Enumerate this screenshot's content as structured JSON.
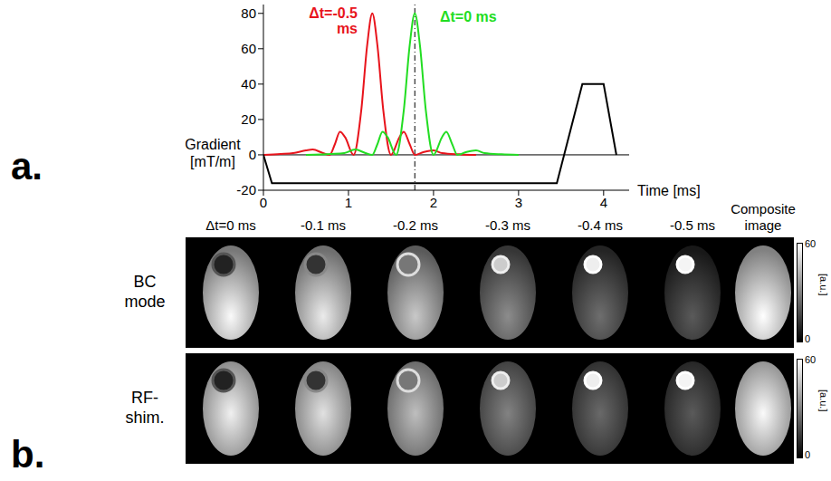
{
  "chart_data": {
    "type": "line",
    "x_label": "Time [ms]",
    "y_label": "Gradient [mT/m]",
    "xlim": [
      0,
      4.3
    ],
    "xticks": [
      0,
      1,
      2,
      3,
      4
    ],
    "ylim": [
      -20,
      85
    ],
    "yticks": [
      -20,
      0,
      20,
      40,
      60,
      80
    ],
    "vertical_line": 1.78,
    "series": [
      {
        "name": "Δt=-0.5 ms",
        "color": "#e8141c",
        "x": [
          0,
          0.2,
          0.35,
          0.5,
          0.58,
          0.7,
          0.78,
          0.84,
          0.9,
          0.96,
          1.06,
          1.15,
          1.22,
          1.28,
          1.34,
          1.41,
          1.5,
          1.6,
          1.65,
          1.72,
          1.78,
          1.88,
          2.0,
          2.1,
          2.3,
          2.5
        ],
        "values": [
          0,
          0.5,
          1,
          2.5,
          3,
          1,
          0,
          6,
          13,
          10,
          0,
          25,
          62,
          80,
          62,
          25,
          0,
          10,
          13,
          6,
          0,
          1.5,
          2.5,
          1,
          0.3,
          0
        ]
      },
      {
        "name": "Δt=0 ms",
        "color": "#22dd22",
        "x": [
          0.5,
          0.8,
          0.95,
          1.08,
          1.2,
          1.28,
          1.34,
          1.4,
          1.46,
          1.56,
          1.65,
          1.72,
          1.78,
          1.84,
          1.91,
          2.0,
          2.1,
          2.15,
          2.22,
          2.28,
          2.38,
          2.5,
          2.6,
          2.8,
          3.0
        ],
        "values": [
          0,
          0.5,
          1,
          3,
          1,
          0,
          6,
          13,
          10,
          0,
          25,
          62,
          80,
          62,
          25,
          0,
          10,
          13,
          6,
          0,
          1.5,
          2.5,
          1,
          0.3,
          0
        ]
      },
      {
        "color": "#000000",
        "x": [
          0,
          0.1,
          3.45,
          3.75,
          4.0,
          4.15
        ],
        "values": [
          0,
          -16,
          -16,
          40,
          40,
          0
        ]
      }
    ]
  },
  "panel_labels": [
    "a.",
    "b."
  ],
  "image_grid": {
    "columns": [
      "Δt=0 ms",
      "-0.1 ms",
      "-0.2 ms",
      "-0.3 ms",
      "-0.4 ms",
      "-0.5 ms",
      "Composite image"
    ],
    "rows": [
      "BC mode",
      "RF-shim."
    ],
    "colorbar": {
      "range": [
        0,
        60
      ],
      "ticks": [
        0,
        60
      ],
      "label": "[a.u.]"
    }
  }
}
